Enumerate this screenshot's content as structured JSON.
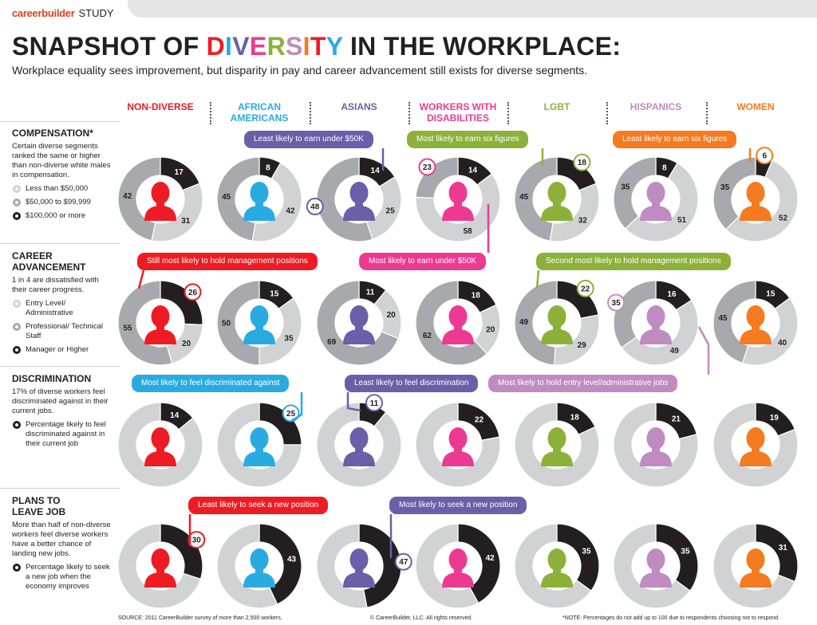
{
  "header": {
    "brand": "careerbuilder",
    "brand_suffix": "STUDY",
    "title_prefix": "SNAPSHOT OF ",
    "title_highlight": "DIVERSITY",
    "title_suffix": " IN THE WORKPLACE:",
    "subtitle": "Workplace equality sees improvement, but disparity in pay and career advancement still exists for diverse segments."
  },
  "colors": {
    "light": "#d1d2d4",
    "medium": "#a7a9ac",
    "dark": "#231f20",
    "title_letters": [
      "#ed1c24",
      "#29abe2",
      "#6a5fa8",
      "#ec3a93",
      "#8cb13a",
      "#c08bc0",
      "#f47b20",
      "#ed1c24",
      "#29abe2"
    ]
  },
  "groups": [
    {
      "name_lines": [
        "NON-DIVERSE"
      ],
      "color": "#ed1c24"
    },
    {
      "name_lines": [
        "AFRICAN",
        "AMERICANS"
      ],
      "color": "#29abe2"
    },
    {
      "name_lines": [
        "ASIANS"
      ],
      "color": "#6a5fa8"
    },
    {
      "name_lines": [
        "WORKERS WITH",
        "DISABILITIES"
      ],
      "color": "#ec3a93"
    },
    {
      "name_lines": [
        "LGBT"
      ],
      "color": "#8cb13a"
    },
    {
      "name_lines": [
        "HISPANICS"
      ],
      "color": "#c08bc0"
    },
    {
      "name_lines": [
        "WOMEN"
      ],
      "color": "#f47b20"
    }
  ],
  "sections": {
    "compensation": {
      "title": "COMPENSATION*",
      "description": "Certain diverse segments ranked the same or higher than non-diverse white males in compensation.",
      "legend": [
        "Less than $50,000",
        "$50,000 to $99,999",
        "$100,000 or more"
      ]
    },
    "career": {
      "title_lines": [
        "CAREER",
        "ADVANCEMENT"
      ],
      "description": "1 in 4 are dissatisfied with their career progress.",
      "legend": [
        "Entry Level/ Administrative",
        "Professional/ Technical Staff",
        "Manager  or Higher"
      ]
    },
    "discrimination": {
      "title": "DISCRIMINATION",
      "description": "17% of diverse workers feel discriminated against in their current jobs.",
      "legend": [
        "Percentage likely to feel discriminated against in their current job"
      ]
    },
    "leave": {
      "title_lines": [
        "PLANS TO",
        "LEAVE JOB"
      ],
      "description": "More than half of non-diverse workers feel diverse workers have a better chance of landing new jobs.",
      "legend": [
        "Percentage likely to seek a new job when the economy improves"
      ]
    }
  },
  "callouts": {
    "comp_asian": "Least likely to earn under $50K",
    "comp_lgbt": "Most likely to earn six figures",
    "comp_women": "Least  likely to earn six figures",
    "career_nondiverse": "Still most likely to hold management positions",
    "comp_disab": "Most likely to earn under $50K",
    "career_lgbt": "Second most likely to hold management positions",
    "disc_african": "Most likely to feel discriminated against",
    "disc_asian": "Least likely to feel discrimination",
    "career_hisp": "Most likely to hold entry level/administrative jobs",
    "leave_nondiverse": "Least likely to seek a new position",
    "leave_asian": "Most likely to seek a new position"
  },
  "chart_data": [
    {
      "type": "pie",
      "section": "COMPENSATION*",
      "categories": [
        "NON-DIVERSE",
        "AFRICAN AMERICANS",
        "ASIANS",
        "WORKERS WITH DISABILITIES",
        "LGBT",
        "HISPANICS",
        "WOMEN"
      ],
      "series": [
        {
          "name": "Less than $50,000",
          "values": [
            31,
            42,
            25,
            58,
            32,
            51,
            52
          ]
        },
        {
          "name": "$50,000 to $99,999",
          "values": [
            42,
            45,
            48,
            23,
            45,
            35,
            35
          ]
        },
        {
          "name": "$100,000 or more",
          "values": [
            17,
            8,
            14,
            14,
            18,
            8,
            6
          ]
        }
      ]
    },
    {
      "type": "pie",
      "section": "CAREER ADVANCEMENT",
      "categories": [
        "NON-DIVERSE",
        "AFRICAN AMERICANS",
        "ASIANS",
        "WORKERS WITH DISABILITIES",
        "LGBT",
        "HISPANICS",
        "WOMEN"
      ],
      "series": [
        {
          "name": "Entry Level/ Administrative",
          "values": [
            20,
            35,
            20,
            20,
            29,
            49,
            40
          ]
        },
        {
          "name": "Professional/ Technical Staff",
          "values": [
            55,
            50,
            69,
            62,
            49,
            35,
            45
          ]
        },
        {
          "name": "Manager  or Higher",
          "values": [
            26,
            15,
            11,
            18,
            22,
            16,
            15
          ]
        }
      ]
    },
    {
      "type": "pie",
      "section": "DISCRIMINATION",
      "categories": [
        "NON-DIVERSE",
        "AFRICAN AMERICANS",
        "ASIANS",
        "WORKERS WITH DISABILITIES",
        "LGBT",
        "HISPANICS",
        "WOMEN"
      ],
      "series": [
        {
          "name": "Percentage likely to feel discriminated against in their current job",
          "values": [
            14,
            25,
            11,
            22,
            18,
            21,
            19
          ]
        }
      ]
    },
    {
      "type": "pie",
      "section": "PLANS TO LEAVE JOB",
      "categories": [
        "NON-DIVERSE",
        "AFRICAN AMERICANS",
        "ASIANS",
        "WORKERS WITH DISABILITIES",
        "LGBT",
        "HISPANICS",
        "WOMEN"
      ],
      "series": [
        {
          "name": "Percentage likely to seek a new job when the economy improves",
          "values": [
            30,
            43,
            47,
            42,
            35,
            35,
            31
          ]
        }
      ]
    }
  ],
  "footer": {
    "source": "SOURCE: 2011 CareerBuilder survey of more than 2,500 workers.",
    "copyright": "© CareerBuilder, LLC. All rights reserved.",
    "note": "*NOTE: Percentages do not add up to 100 due to respondents choosing not to respond."
  }
}
